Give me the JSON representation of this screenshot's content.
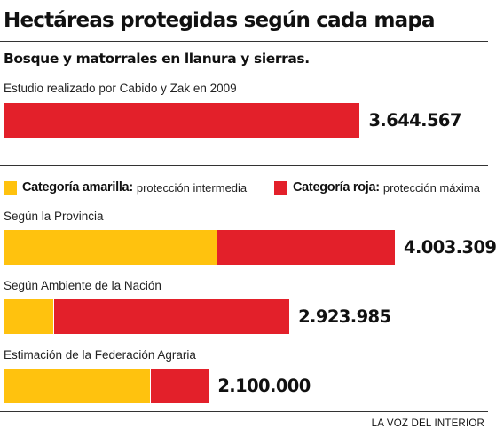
{
  "chart_data": {
    "type": "bar",
    "title": "Hectáreas protegidas según cada mapa",
    "subtitle": "Bosque y matorrales en llanura y sierras.",
    "top_study": {
      "label": "Estudio realizado por Cabido y Zak en 2009",
      "value": 3644567,
      "value_label": "3.644.567"
    },
    "legend": [
      {
        "name": "Categoría amarilla:",
        "desc": "protección intermedia",
        "color": "#FFC20E"
      },
      {
        "name": "Categoría roja:",
        "desc": "protección máxima",
        "color": "#E3202A"
      }
    ],
    "categories": [
      "Según la Provincia",
      "Según Ambiente de la Nación",
      "Estimación de la Federación Agraria"
    ],
    "series": [
      {
        "name": "Categoría amarilla",
        "values": [
          2180000,
          508000,
          1500000
        ]
      },
      {
        "name": "Categoría roja",
        "values": [
          1823309,
          2415985,
          600000
        ]
      }
    ],
    "totals": [
      "4.003.309",
      "2.923.985",
      "2.100.000"
    ],
    "source": "LA VOZ DEL INTERIOR"
  }
}
